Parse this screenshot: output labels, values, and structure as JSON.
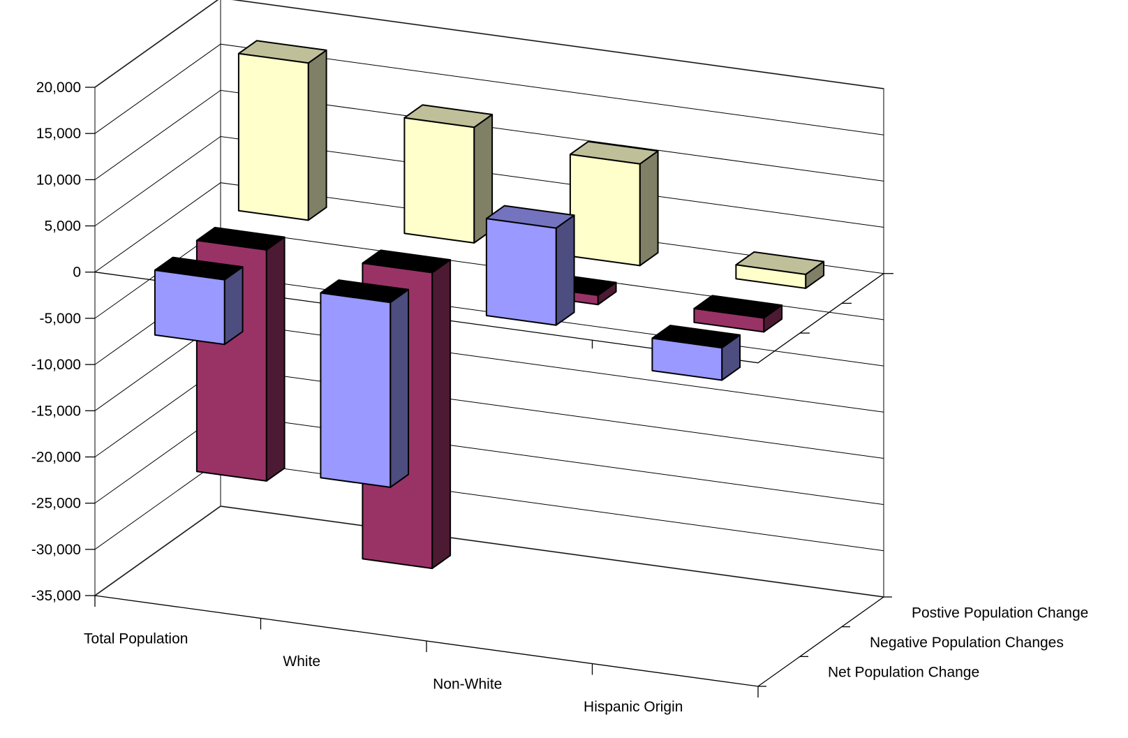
{
  "chart_data": {
    "type": "bar",
    "title": "",
    "xlabel": "",
    "ylabel": "",
    "categories": [
      "Total Population",
      "White",
      "Non-White",
      "Hispanic Origin"
    ],
    "series": [
      {
        "name": "Net Population Change",
        "values": [
          -7000,
          -20000,
          10500,
          -3500
        ],
        "color": "#9999ff"
      },
      {
        "name": "Negative Population Changes",
        "values": [
          -25000,
          -32000,
          -1000,
          -1500
        ],
        "color": "#993366"
      },
      {
        "name": "Postive Population Change",
        "values": [
          17000,
          12500,
          11000,
          1500
        ],
        "color": "#ffffcc"
      }
    ],
    "series_order_front_to_back": [
      "Net Population Change",
      "Negative Population Changes",
      "Postive Population Change"
    ],
    "ylim": [
      -35000,
      20000
    ],
    "ytick_labels": [
      "20,000",
      "15,000",
      "10,000",
      "5,000",
      "0",
      "-5,000",
      "-10,000",
      "-15,000",
      "-20,000",
      "-25,000",
      "-30,000",
      "-35,000"
    ],
    "grid": true,
    "legend": "none",
    "projection": "3d"
  },
  "colors": {
    "wall": "#808080",
    "grid": "#000000",
    "background": "#ffffff"
  }
}
